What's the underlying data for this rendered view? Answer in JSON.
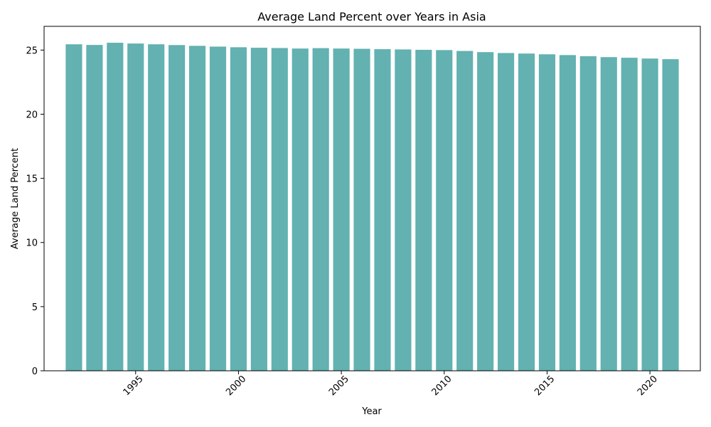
{
  "chart_data": {
    "type": "bar",
    "title": "Average Land Percent over Years in Asia",
    "xlabel": "Year",
    "ylabel": "Average Land Percent",
    "x": [
      1992,
      1993,
      1994,
      1995,
      1996,
      1997,
      1998,
      1999,
      2000,
      2001,
      2002,
      2003,
      2004,
      2005,
      2006,
      2007,
      2008,
      2009,
      2010,
      2011,
      2012,
      2013,
      2014,
      2015,
      2016,
      2017,
      2018,
      2019,
      2020,
      2021
    ],
    "values": [
      25.45,
      25.4,
      25.57,
      25.51,
      25.45,
      25.39,
      25.33,
      25.27,
      25.22,
      25.18,
      25.16,
      25.12,
      25.15,
      25.12,
      25.1,
      25.07,
      25.05,
      25.02,
      25.0,
      24.93,
      24.84,
      24.77,
      24.73,
      24.67,
      24.61,
      24.52,
      24.45,
      24.4,
      24.34,
      24.29
    ],
    "xticks": [
      "1995",
      "2000",
      "2005",
      "2010",
      "2015",
      "2020"
    ],
    "yticks": [
      "0",
      "5",
      "10",
      "15",
      "20",
      "25"
    ],
    "xlim": [
      1990.55,
      2022.45
    ],
    "ylim": [
      0,
      26.85
    ],
    "bar_color": "#63b1b1",
    "grid": false,
    "legend": "none"
  }
}
